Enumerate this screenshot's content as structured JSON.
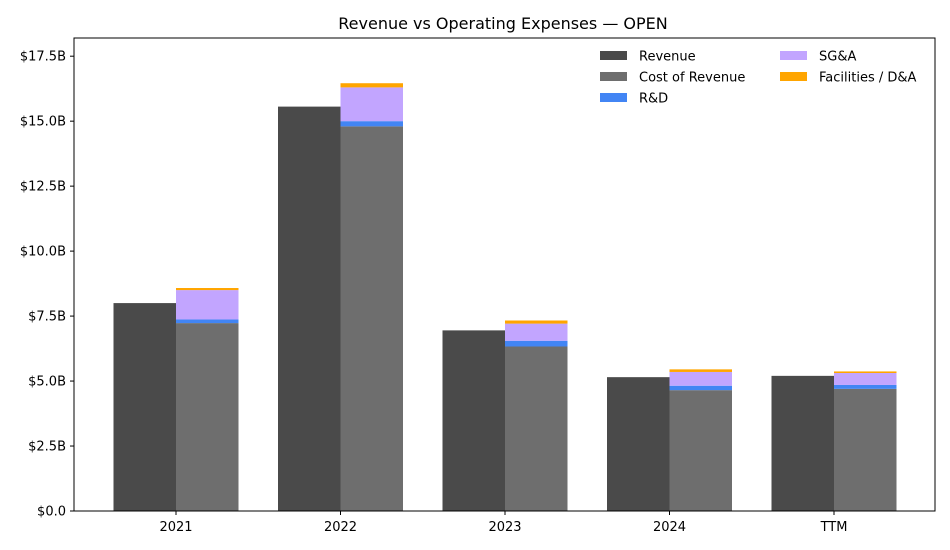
{
  "chart_data": {
    "type": "bar",
    "title": "Revenue vs Operating Expenses — OPEN",
    "categories": [
      "2021",
      "2022",
      "2023",
      "2024",
      "TTM"
    ],
    "ylim": [
      0,
      18.2
    ],
    "yticks": [
      0,
      2.5,
      5.0,
      7.5,
      10.0,
      12.5,
      15.0,
      17.5
    ],
    "ytick_labels": [
      "$0.0",
      "$2.5B",
      "$5.0B",
      "$7.5B",
      "$10.0B",
      "$12.5B",
      "$15.0B",
      "$17.5B"
    ],
    "unit": "B",
    "grid": false,
    "legend_position": "top-right",
    "revenue": {
      "name": "Revenue",
      "color": "#4a4a4a",
      "values": [
        8.0,
        15.56,
        6.95,
        5.15,
        5.2
      ]
    },
    "expenses": [
      {
        "name": "Cost of Revenue",
        "color": "#6e6e6e",
        "values": [
          7.23,
          14.8,
          6.33,
          4.65,
          4.7
        ]
      },
      {
        "name": "R&D",
        "color": "#4285f4",
        "values": [
          0.14,
          0.2,
          0.22,
          0.17,
          0.15
        ]
      },
      {
        "name": "SG&A",
        "color": "#c2a5ff",
        "values": [
          1.13,
          1.3,
          0.66,
          0.53,
          0.46
        ]
      },
      {
        "name": "Facilities / D&A",
        "color": "#ffa500",
        "values": [
          0.08,
          0.16,
          0.12,
          0.1,
          0.06
        ]
      }
    ]
  }
}
